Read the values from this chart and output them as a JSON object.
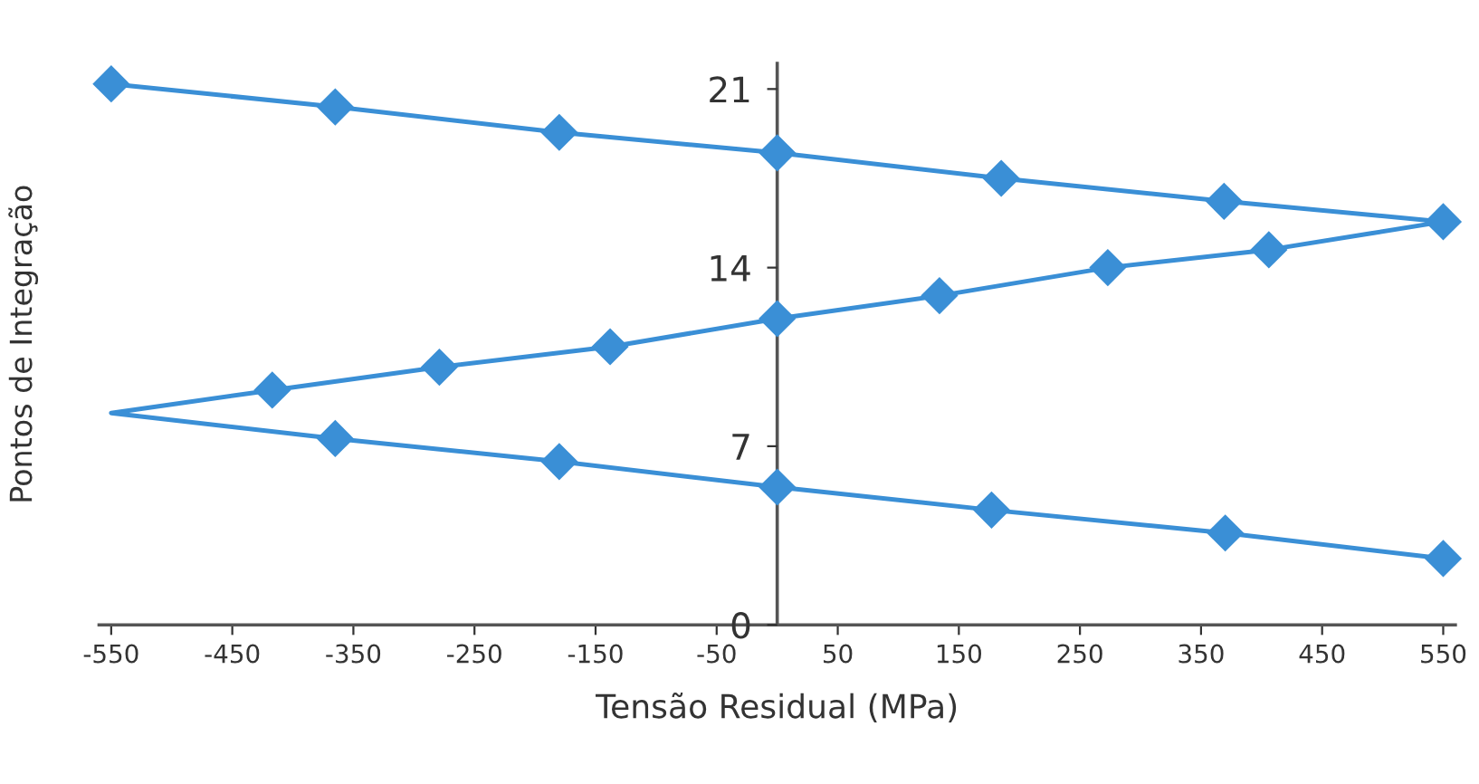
{
  "chart_data": {
    "type": "line",
    "xlabel": "Tensão Residual (MPa)",
    "ylabel": "Pontos de Integração",
    "xlim": [
      -560,
      560
    ],
    "ylim": [
      0,
      22
    ],
    "xticks": [
      -550,
      -450,
      -350,
      -250,
      -150,
      -50,
      50,
      150,
      250,
      350,
      450,
      550
    ],
    "yticks": [
      0,
      7,
      14,
      21
    ],
    "grid": false,
    "legend": false,
    "series": [
      {
        "marker": "none",
        "color": "#3a8fd6",
        "x": [
          -550,
          -365,
          -180,
          0,
          185,
          369,
          550,
          406,
          273,
          134,
          0,
          -138,
          -279,
          -417,
          -550,
          -365,
          -180,
          0,
          177,
          370,
          550
        ],
        "values": [
          21.2,
          20.3,
          19.3,
          18.5,
          17.5,
          16.6,
          15.8,
          14.7,
          14.0,
          12.9,
          12.0,
          10.9,
          10.1,
          9.2,
          8.3,
          7.3,
          6.4,
          5.4,
          4.5,
          3.6,
          2.6
        ]
      },
      {
        "type": "scatter",
        "marker": "diamond",
        "color": "#3a8fd6",
        "x": [
          -550,
          -365,
          -180,
          0,
          185,
          369,
          550,
          406,
          273,
          134,
          0,
          -138,
          -279,
          -417,
          -365,
          -180,
          0,
          177,
          370,
          550
        ],
        "values": [
          21.2,
          20.3,
          19.3,
          18.5,
          17.5,
          16.6,
          15.8,
          14.7,
          14.0,
          12.9,
          12.0,
          10.9,
          10.1,
          9.2,
          7.3,
          6.4,
          5.4,
          4.5,
          3.6,
          2.6
        ]
      }
    ]
  }
}
